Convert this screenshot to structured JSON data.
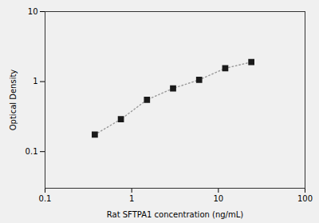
{
  "chart_data": {
    "type": "line",
    "x": [
      0.375,
      0.75,
      1.5,
      3.0,
      6.0,
      12.0,
      24.0
    ],
    "values": [
      0.175,
      0.29,
      0.55,
      0.8,
      1.06,
      1.55,
      1.9
    ],
    "xlabel": "Rat SFTPA1 concentration (ng/mL)",
    "ylabel": "Optical Density",
    "xlim": [
      0.1,
      100
    ],
    "ylim": [
      0.03,
      10
    ],
    "xticks": [
      0.1,
      1,
      10,
      100
    ],
    "yticks": [
      0.1,
      1,
      10
    ],
    "log": true,
    "color": "#999999",
    "marker": "square",
    "line_style": "dotted"
  }
}
